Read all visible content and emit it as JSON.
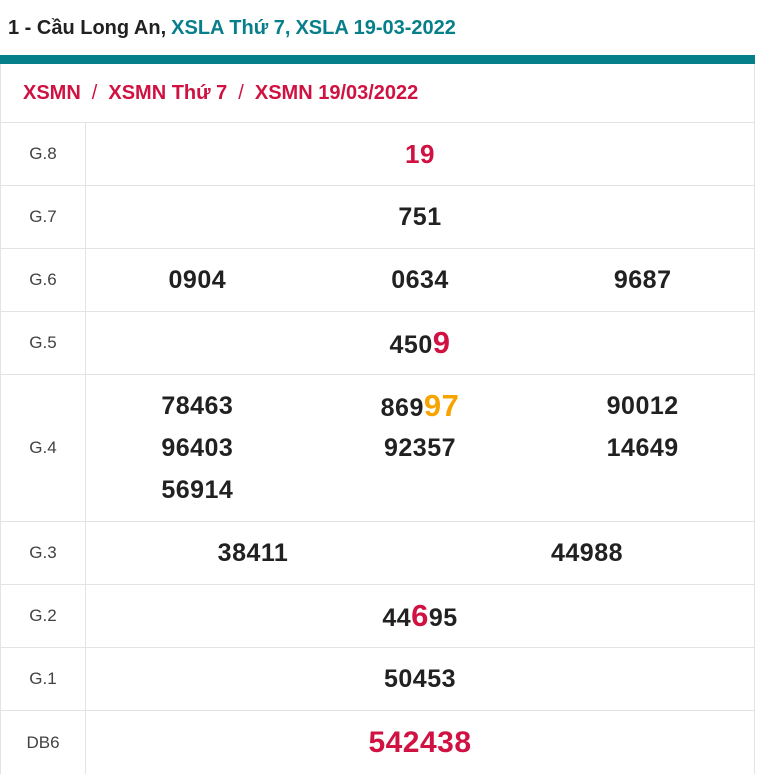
{
  "title": {
    "plain": "1 - Cầu Long An,",
    "link_day": "XSLA Thứ 7,",
    "link_date": "XSLA 19-03-2022"
  },
  "breadcrumb": {
    "items": [
      "XSMN",
      "XSMN Thứ 7",
      "XSMN 19/03/2022"
    ],
    "separator": "/"
  },
  "colors": {
    "accent_teal": "#077f8a",
    "highlight_red": "#cf1242",
    "highlight_orange": "#f7a400",
    "border": "#e3e3e3",
    "number_text": "#212121"
  },
  "results": {
    "g8": {
      "label": "G.8",
      "value": "19"
    },
    "g7": {
      "label": "G.7",
      "value": "751"
    },
    "g6": {
      "label": "G.6",
      "values": [
        "0904",
        "0634",
        "9687"
      ]
    },
    "g5": {
      "label": "G.5",
      "pre": "450",
      "highlight": "9"
    },
    "g4": {
      "label": "G.4",
      "row1": {
        "a": "78463",
        "b_pre": "869",
        "b_highlight": "97",
        "c": "90012"
      },
      "row2": [
        "96403",
        "92357",
        "14649"
      ],
      "row3": "56914"
    },
    "g3": {
      "label": "G.3",
      "values": [
        "38411",
        "44988"
      ]
    },
    "g2": {
      "label": "G.2",
      "pre": "44",
      "highlight": "6",
      "post": "95"
    },
    "g1": {
      "label": "G.1",
      "value": "50453"
    },
    "db": {
      "label": "DB6",
      "value": "542438"
    }
  }
}
